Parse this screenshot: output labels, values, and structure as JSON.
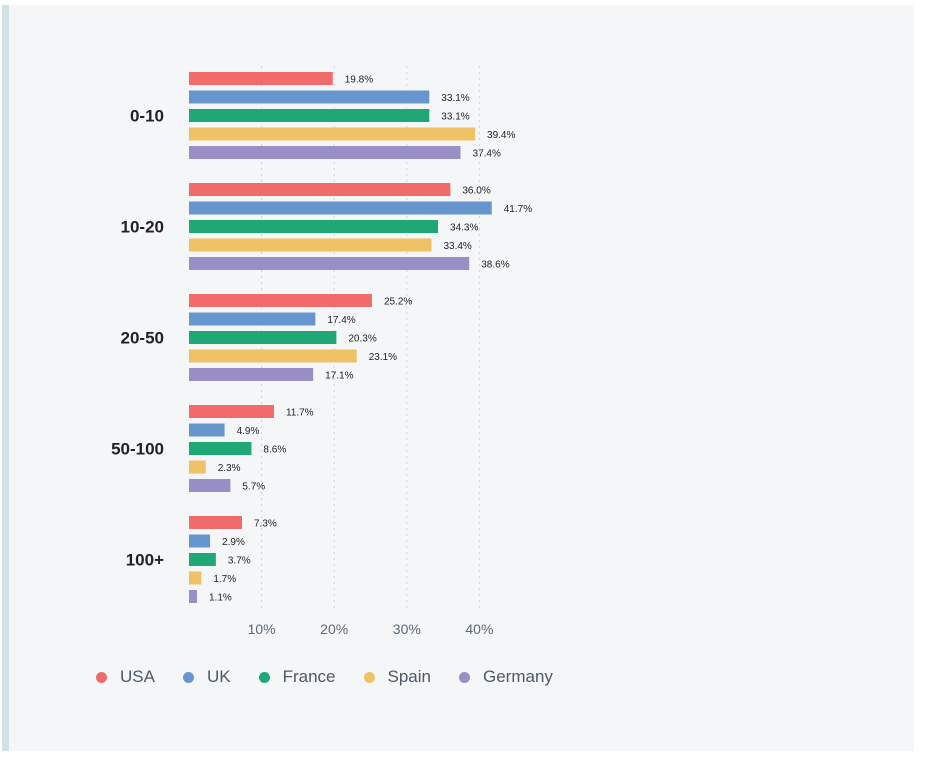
{
  "chart_data": {
    "type": "bar",
    "orientation": "horizontal",
    "categories": [
      "0-10",
      "10-20",
      "20-50",
      "50-100",
      "100+"
    ],
    "series": [
      {
        "name": "USA",
        "color": "#f16b6b",
        "values": [
          19.8,
          36.0,
          25.2,
          11.7,
          7.3
        ]
      },
      {
        "name": "UK",
        "color": "#6796cf",
        "values": [
          33.1,
          41.7,
          17.4,
          4.9,
          2.9
        ]
      },
      {
        "name": "France",
        "color": "#1fa876",
        "values": [
          33.1,
          34.3,
          20.3,
          8.6,
          3.7
        ]
      },
      {
        "name": "Spain",
        "color": "#f0c266",
        "values": [
          39.4,
          33.4,
          23.1,
          2.3,
          1.7
        ]
      },
      {
        "name": "Germany",
        "color": "#9a8fc4",
        "values": [
          37.4,
          38.6,
          17.1,
          5.7,
          1.1
        ]
      }
    ],
    "x_ticks": [
      "10%",
      "20%",
      "30%",
      "40%"
    ],
    "x_tick_values": [
      10,
      20,
      30,
      40
    ],
    "xlim": [
      0,
      40
    ],
    "value_suffix": "%",
    "grid": "vertical dotted",
    "legend_position": "bottom-left"
  }
}
